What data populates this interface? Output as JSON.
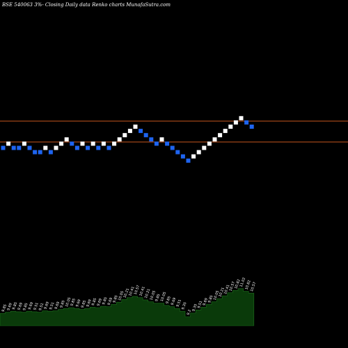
{
  "title": "BSE 540063 3%-  Closing Daily data  Renko  charts MunafaSutra.com",
  "colors": {
    "background": "#000000",
    "brick_up": "#ffffff",
    "brick_down": "#1e64f0",
    "reference_line": "#c8561e",
    "volume_fill": "#0a3a0a",
    "volume_stroke": "#1c6e1c"
  },
  "chart_data": {
    "type": "renko",
    "title": "BSE 540063 3%-  Closing Daily data  Renko  charts MunafaSutra.com",
    "brick_size_levels": 1,
    "reference_levels": [
      12.06,
      9.6
    ],
    "bricks": [
      {
        "dir": "down",
        "level": 0
      },
      {
        "dir": "up",
        "level": 1
      },
      {
        "dir": "down",
        "level": 0
      },
      {
        "dir": "down",
        "level": 0
      },
      {
        "dir": "up",
        "level": 1
      },
      {
        "dir": "down",
        "level": 0
      },
      {
        "dir": "down",
        "level": -1
      },
      {
        "dir": "down",
        "level": -1
      },
      {
        "dir": "up",
        "level": 0
      },
      {
        "dir": "down",
        "level": -1
      },
      {
        "dir": "up",
        "level": 0
      },
      {
        "dir": "up",
        "level": 1
      },
      {
        "dir": "up",
        "level": 2
      },
      {
        "dir": "down",
        "level": 1
      },
      {
        "dir": "down",
        "level": 0
      },
      {
        "dir": "up",
        "level": 1
      },
      {
        "dir": "down",
        "level": 0
      },
      {
        "dir": "up",
        "level": 1
      },
      {
        "dir": "down",
        "level": 0
      },
      {
        "dir": "up",
        "level": 1
      },
      {
        "dir": "down",
        "level": 0
      },
      {
        "dir": "up",
        "level": 1
      },
      {
        "dir": "up",
        "level": 2
      },
      {
        "dir": "up",
        "level": 3
      },
      {
        "dir": "up",
        "level": 4
      },
      {
        "dir": "up",
        "level": 5
      },
      {
        "dir": "down",
        "level": 4
      },
      {
        "dir": "down",
        "level": 3
      },
      {
        "dir": "down",
        "level": 2
      },
      {
        "dir": "down",
        "level": 1
      },
      {
        "dir": "up",
        "level": 2
      },
      {
        "dir": "down",
        "level": 1
      },
      {
        "dir": "down",
        "level": 0
      },
      {
        "dir": "down",
        "level": -1
      },
      {
        "dir": "down",
        "level": -2
      },
      {
        "dir": "down",
        "level": -3
      },
      {
        "dir": "up",
        "level": -2
      },
      {
        "dir": "up",
        "level": -1
      },
      {
        "dir": "up",
        "level": 0
      },
      {
        "dir": "up",
        "level": 1
      },
      {
        "dir": "up",
        "level": 2
      },
      {
        "dir": "up",
        "level": 3
      },
      {
        "dir": "up",
        "level": 4
      },
      {
        "dir": "up",
        "level": 5
      },
      {
        "dir": "up",
        "level": 6
      },
      {
        "dir": "up",
        "level": 7
      },
      {
        "dir": "down",
        "level": 6
      },
      {
        "dir": "down",
        "level": 5
      }
    ],
    "volume_labels": [
      "9.85",
      "9.69",
      "9.85",
      "9.69",
      "9.85",
      "9.69",
      "9.51",
      "9.51",
      "9.69",
      "9.51",
      "9.69",
      "9.85",
      "10.05",
      "9.85",
      "9.69",
      "9.85",
      "9.69",
      "9.85",
      "9.69",
      "9.85",
      "9.69",
      "9.85",
      "10.05",
      "10.21",
      "10.41",
      "10.57",
      "10.41",
      "10.21",
      "10.05",
      "9.85",
      "10.05",
      "9.85",
      "9.69",
      "9.51",
      "9.35",
      "9.2",
      "9.35",
      "9.51",
      "9.69",
      "9.85",
      "10.05",
      "10.21",
      "10.41",
      "10.57",
      "10.82",
      "11.02",
      "10.82",
      "10.57"
    ],
    "volume_profile": [
      0.27,
      0.3,
      0.32,
      0.31,
      0.3,
      0.32,
      0.31,
      0.3,
      0.33,
      0.32,
      0.33,
      0.36,
      0.38,
      0.4,
      0.38,
      0.36,
      0.38,
      0.41,
      0.4,
      0.43,
      0.42,
      0.47,
      0.52,
      0.58,
      0.62,
      0.65,
      0.62,
      0.57,
      0.53,
      0.5,
      0.5,
      0.45,
      0.42,
      0.38,
      0.32,
      0.2,
      0.28,
      0.35,
      0.41,
      0.47,
      0.53,
      0.6,
      0.66,
      0.73,
      0.78,
      0.82,
      0.76,
      0.72
    ]
  }
}
